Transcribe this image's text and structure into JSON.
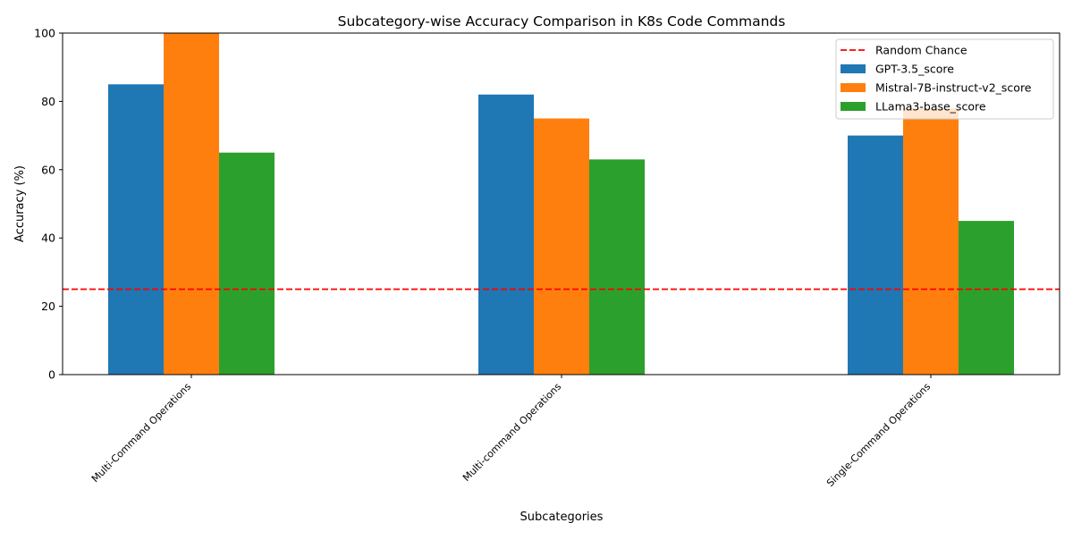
{
  "chart_data": {
    "type": "bar",
    "title": "Subcategory-wise Accuracy Comparison in K8s Code Commands",
    "xlabel": "Subcategories",
    "ylabel": "Accuracy (%)",
    "ylim": [
      0,
      100
    ],
    "yticks": [
      0,
      20,
      40,
      60,
      80,
      100
    ],
    "categories": [
      "Multi-Command Operations",
      "Multi-command Operations",
      "Single-Command Operations"
    ],
    "series": [
      {
        "name": "GPT-3.5_score",
        "color": "#1f77b4",
        "values": [
          85,
          82,
          70
        ]
      },
      {
        "name": "Mistral-7B-instruct-v2_score",
        "color": "#ff7f0e",
        "values": [
          100,
          75,
          78
        ]
      },
      {
        "name": "LLama3-base_score",
        "color": "#2ca02c",
        "values": [
          65,
          63,
          45
        ]
      }
    ],
    "reference_line": {
      "name": "Random Chance",
      "value": 25,
      "color": "#ff0000",
      "style": "dashed"
    },
    "grid": false,
    "legend_position": "top-right"
  }
}
